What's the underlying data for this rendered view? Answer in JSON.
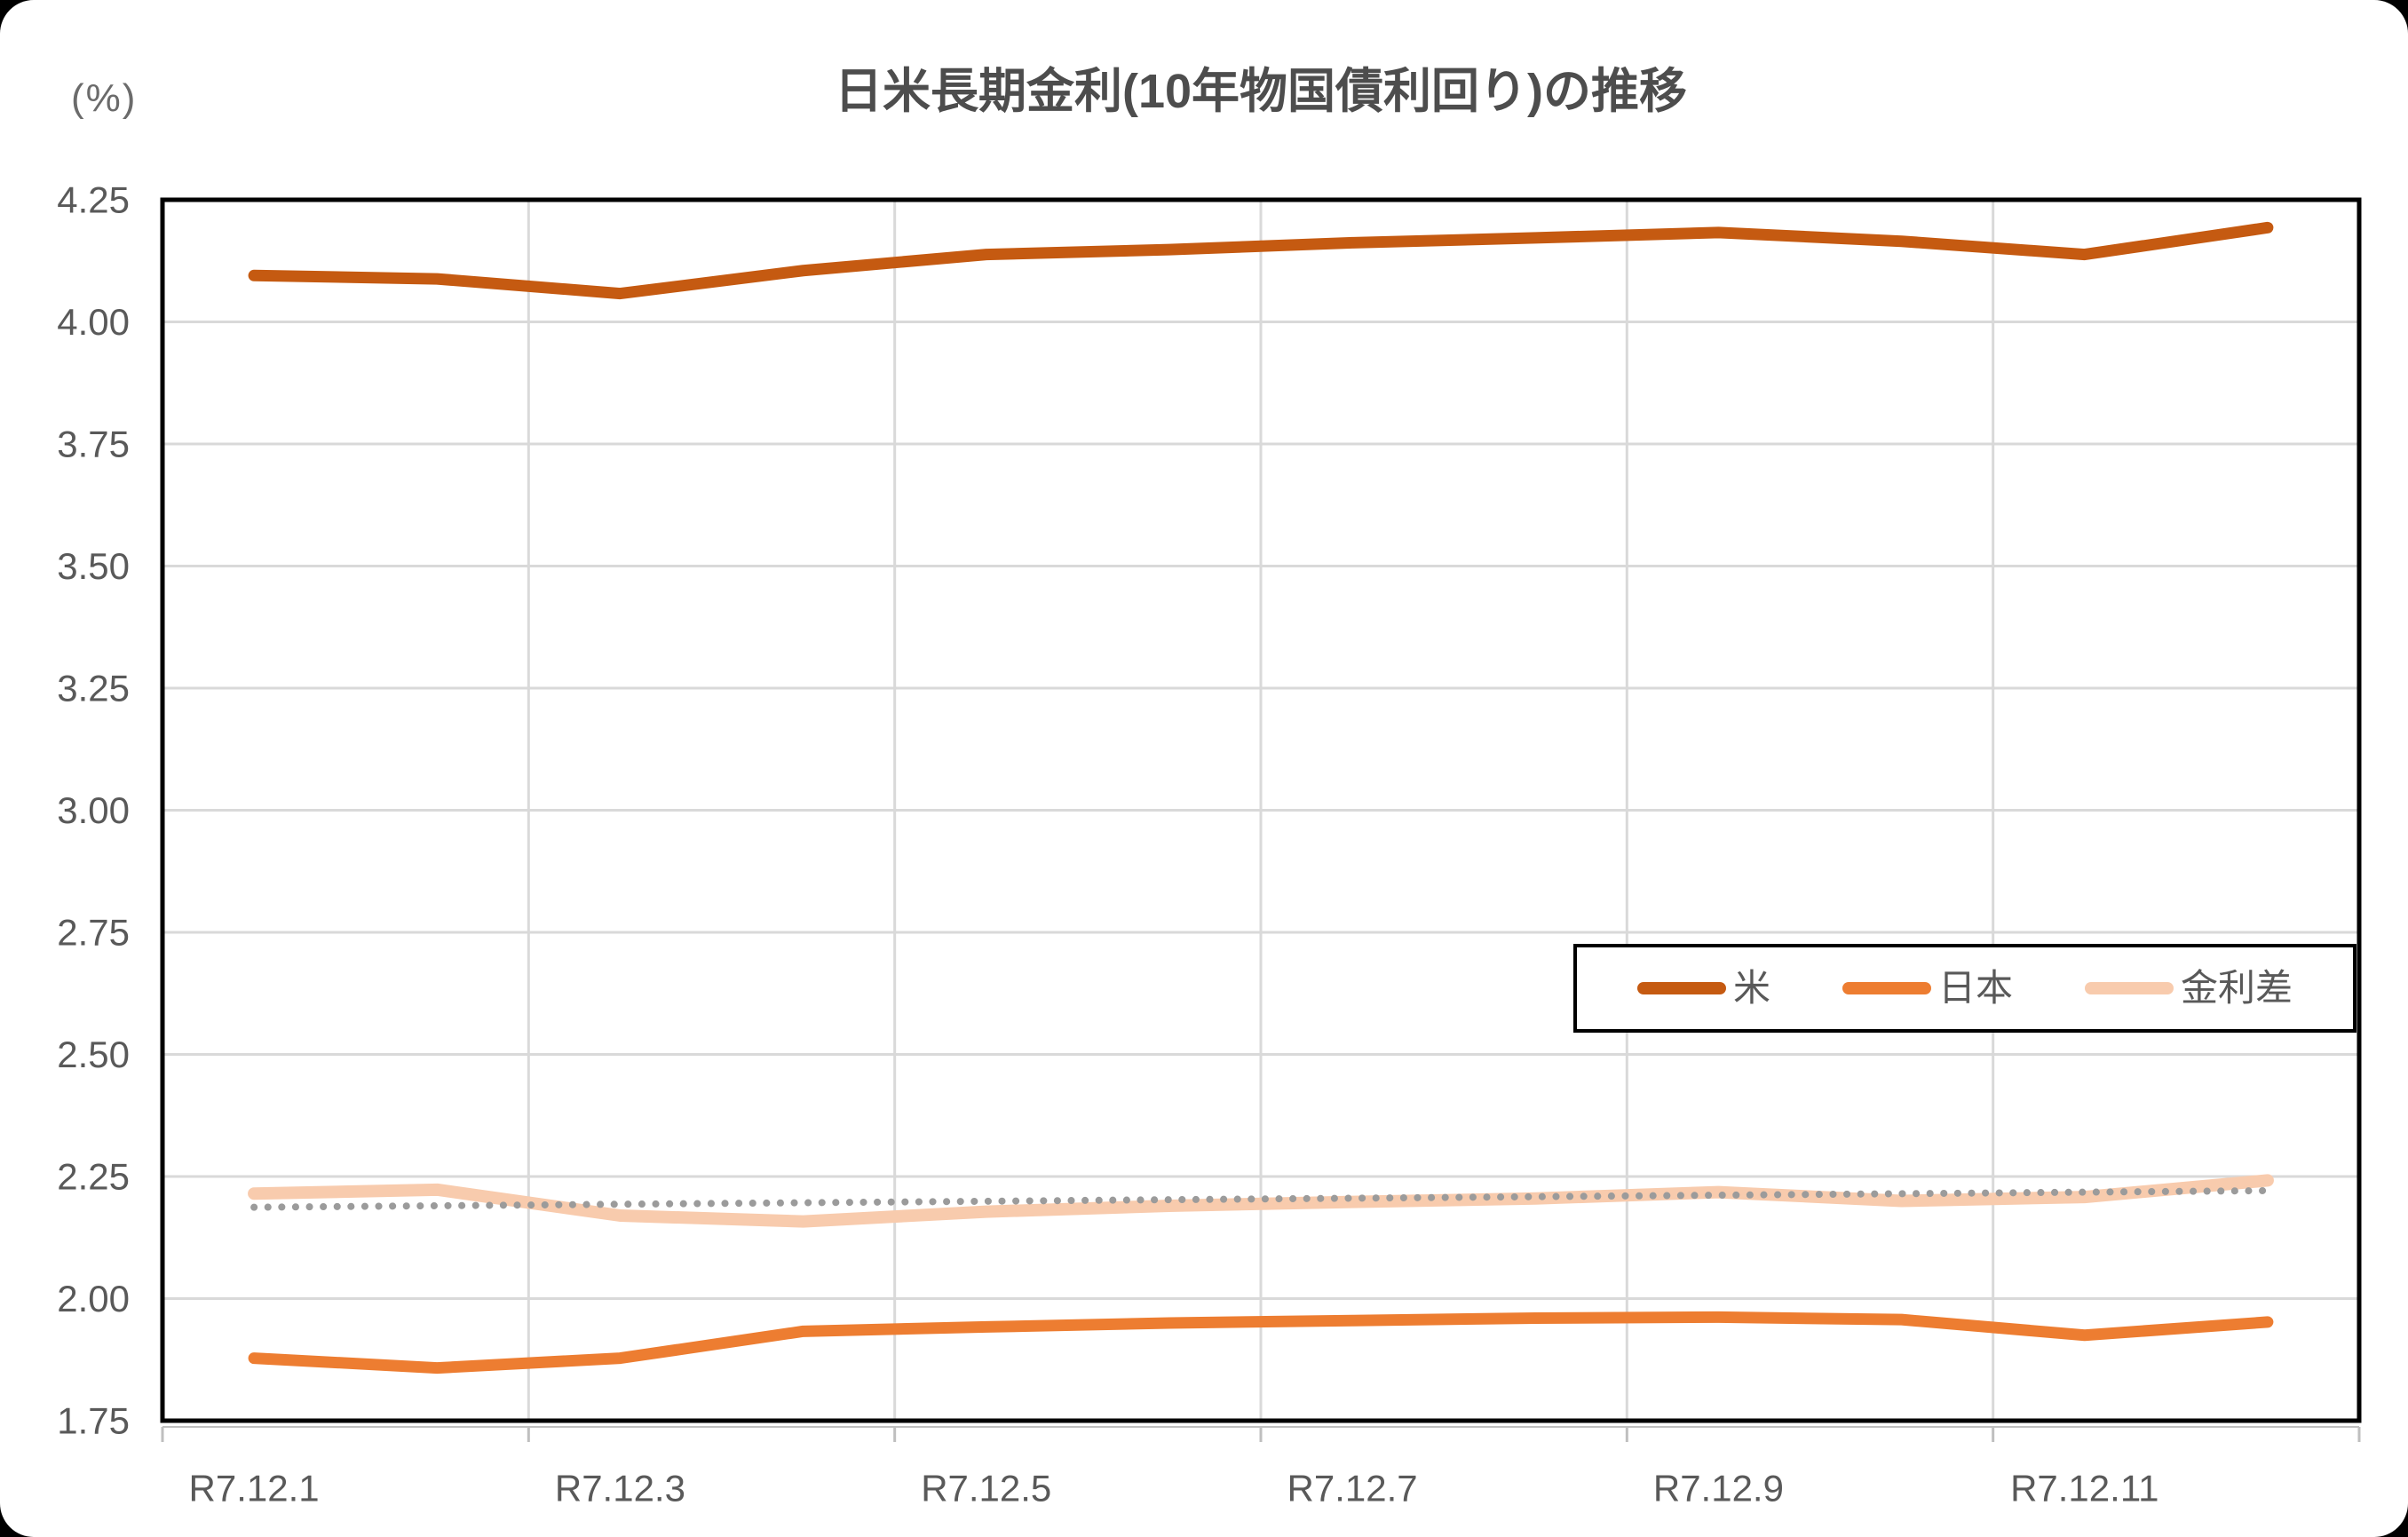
{
  "page": {
    "background_color": "#000000",
    "card_color": "#ffffff"
  },
  "header": {
    "axis_unit": "(%)",
    "title": "日米長期金利(10年物国債利回り)の推移"
  },
  "legend": {
    "items": [
      {
        "label": "米",
        "color": "#C55A11"
      },
      {
        "label": "日本",
        "color": "#ED7D31"
      },
      {
        "label": "金利差",
        "color": "#F8CBAD"
      }
    ]
  },
  "chart_data": {
    "type": "line",
    "title": "日米長期金利(10年物国債利回り)の推移",
    "n_points": 12,
    "x_tick_labels": [
      "R7.12.1",
      "R7.12.3",
      "R7.12.5",
      "R7.12.7",
      "R7.12.9",
      "R7.12.11"
    ],
    "x_tick_indices": [
      0,
      2,
      4,
      6,
      8,
      10
    ],
    "y_axis": {
      "min": 1.75,
      "max": 4.25,
      "step": 0.25,
      "tick_labels": [
        "4.25",
        "4.00",
        "3.75",
        "3.50",
        "3.25",
        "3.00",
        "2.75",
        "2.50",
        "2.25",
        "2.00",
        "1.75"
      ]
    },
    "grid": {
      "color": "#D9D9D9",
      "border_color": "#000000",
      "tick_color": "#BFBFBF"
    },
    "legend_position": "inside-right",
    "series": [
      {
        "name": "米",
        "color": "#C55A11",
        "values": [
          4.095,
          4.088,
          4.058,
          4.105,
          4.138,
          4.148,
          4.162,
          4.172,
          4.183,
          4.165,
          4.138,
          4.193
        ]
      },
      {
        "name": "日本",
        "color": "#ED7D31",
        "values": [
          1.878,
          1.858,
          1.878,
          1.933,
          1.942,
          1.95,
          1.955,
          1.96,
          1.962,
          1.957,
          1.925,
          1.952
        ]
      },
      {
        "name": "金利差",
        "color": "#F8CBAD",
        "values": [
          2.215,
          2.223,
          2.17,
          2.158,
          2.178,
          2.19,
          2.198,
          2.205,
          2.218,
          2.2,
          2.208,
          2.242
        ]
      }
    ],
    "trendline": {
      "name": "金利差トレンド(点線)",
      "style": "dotted",
      "color": "#9B9B9B",
      "start_value": 2.187,
      "end_value": 2.221
    }
  }
}
